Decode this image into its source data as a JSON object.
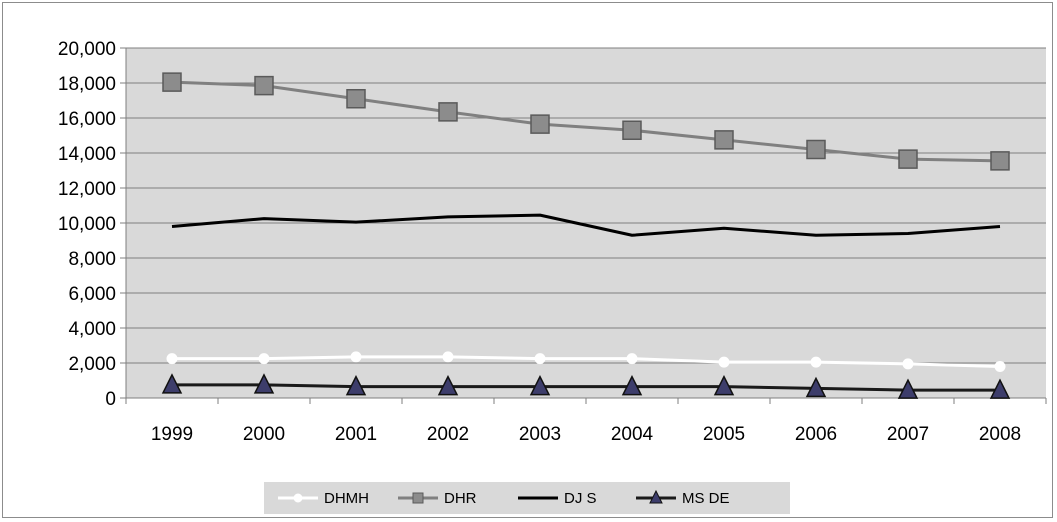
{
  "chart_data": {
    "type": "line",
    "title": "",
    "xlabel": "",
    "ylabel": "",
    "categories": [
      "1999",
      "2000",
      "2001",
      "2002",
      "2003",
      "2004",
      "2005",
      "2006",
      "2007",
      "2008"
    ],
    "ylim": [
      0,
      20000
    ],
    "yticks": [
      0,
      2000,
      4000,
      6000,
      8000,
      10000,
      12000,
      14000,
      16000,
      18000,
      20000
    ],
    "ytick_labels": [
      "0",
      "2,000",
      "4,000",
      "6,000",
      "8,000",
      "10,000",
      "12,000",
      "14,000",
      "16,000",
      "18,000",
      "20,000"
    ],
    "grid": true,
    "plot_background": "#d9d9d9",
    "legend_position": "bottom",
    "series": [
      {
        "name": "DHMH",
        "color": "#ffffff",
        "marker": "circle",
        "values": [
          2250,
          2250,
          2350,
          2350,
          2250,
          2250,
          2050,
          2050,
          1950,
          1800
        ]
      },
      {
        "name": "DHR",
        "color": "#808080",
        "marker": "square",
        "values": [
          18050,
          17850,
          17100,
          16350,
          15650,
          15300,
          14750,
          14200,
          13650,
          13550
        ]
      },
      {
        "name": "DJ S",
        "color": "#000000",
        "marker": "none",
        "values": [
          9800,
          10250,
          10050,
          10350,
          10450,
          9300,
          9700,
          9300,
          9400,
          9800
        ]
      },
      {
        "name": "MS DE",
        "color": "#1a1a1a",
        "marker": "triangle",
        "marker_fill": "#3d3d6b",
        "values": [
          750,
          750,
          650,
          650,
          650,
          650,
          650,
          550,
          450,
          450
        ]
      }
    ]
  }
}
